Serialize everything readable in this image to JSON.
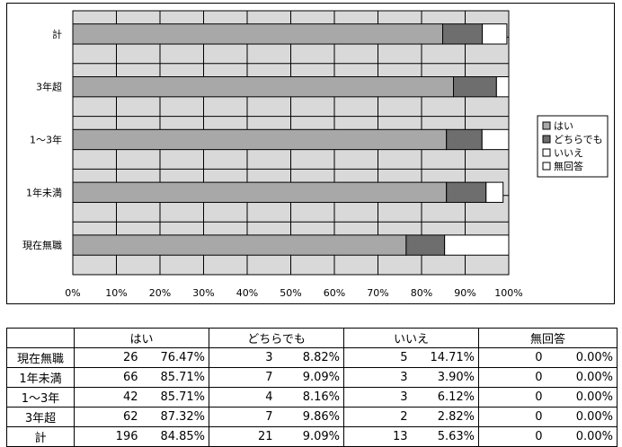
{
  "chart_data": {
    "type": "bar",
    "orientation": "horizontal",
    "stacked": "percent",
    "categories": [
      "計",
      "3年超",
      "1～3年",
      "1年未満",
      "現在無職"
    ],
    "series": [
      {
        "name": "はい",
        "values": [
          84.85,
          87.32,
          85.71,
          85.71,
          76.47
        ],
        "color": "#a8a8a8"
      },
      {
        "name": "どちらでも",
        "values": [
          9.09,
          9.86,
          8.16,
          9.09,
          8.82
        ],
        "color": "#6e6e6e"
      },
      {
        "name": "いいえ",
        "values": [
          5.63,
          2.82,
          6.12,
          3.9,
          14.71
        ],
        "color": "#ffffff"
      },
      {
        "name": "無回答",
        "values": [
          0,
          0,
          0,
          0,
          0
        ],
        "color": "#ffffff"
      }
    ],
    "xlim": [
      0,
      100
    ],
    "xticks": [
      "0%",
      "10%",
      "20%",
      "30%",
      "40%",
      "50%",
      "60%",
      "70%",
      "80%",
      "90%",
      "100%"
    ],
    "grid": true,
    "plot_background": "#d9d9d9",
    "legend": "right"
  },
  "table": {
    "headers": [
      "はい",
      "どちらでも",
      "いいえ",
      "無回答"
    ],
    "rows": [
      {
        "label": "現在無職",
        "cells": [
          [
            "26",
            "76.47%"
          ],
          [
            "3",
            "8.82%"
          ],
          [
            "5",
            "14.71%"
          ],
          [
            "0",
            "0.00%"
          ]
        ]
      },
      {
        "label": "1年未満",
        "cells": [
          [
            "66",
            "85.71%"
          ],
          [
            "7",
            "9.09%"
          ],
          [
            "3",
            "3.90%"
          ],
          [
            "0",
            "0.00%"
          ]
        ]
      },
      {
        "label": "1～3年",
        "cells": [
          [
            "42",
            "85.71%"
          ],
          [
            "4",
            "8.16%"
          ],
          [
            "3",
            "6.12%"
          ],
          [
            "0",
            "0.00%"
          ]
        ]
      },
      {
        "label": "3年超",
        "cells": [
          [
            "62",
            "87.32%"
          ],
          [
            "7",
            "9.86%"
          ],
          [
            "2",
            "2.82%"
          ],
          [
            "0",
            "0.00%"
          ]
        ]
      },
      {
        "label": "計",
        "cells": [
          [
            "196",
            "84.85%"
          ],
          [
            "21",
            "9.09%"
          ],
          [
            "13",
            "5.63%"
          ],
          [
            "0",
            "0.00%"
          ]
        ]
      }
    ]
  }
}
